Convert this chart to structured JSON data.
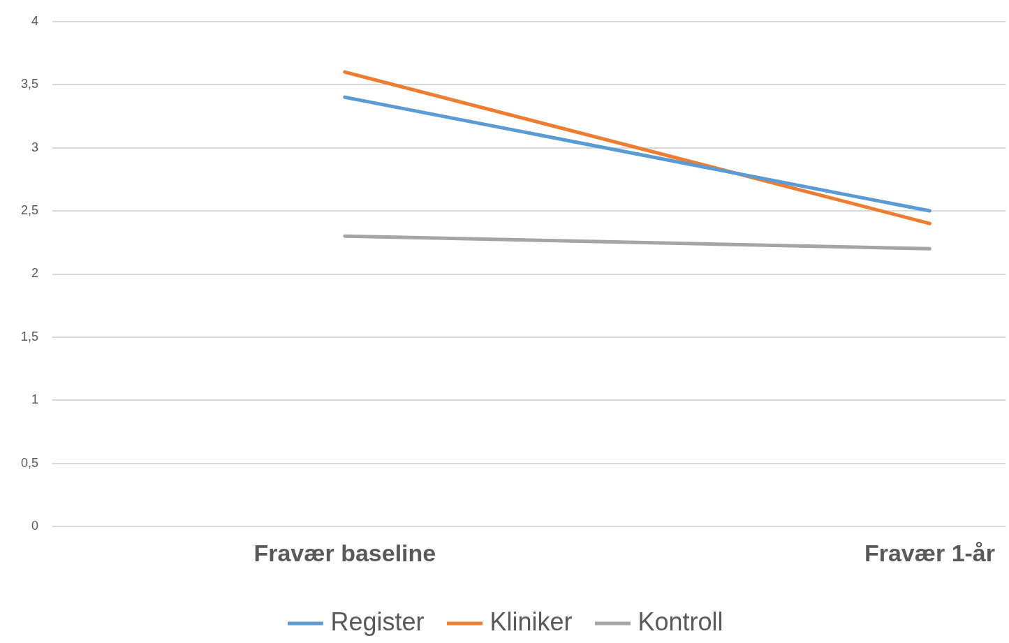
{
  "chart_data": {
    "type": "line",
    "categories": [
      "Fravær baseline",
      "Fravær 1-år"
    ],
    "series": [
      {
        "name": "Register",
        "color": "#5b9bd5",
        "values": [
          3.4,
          2.5
        ]
      },
      {
        "name": "Kliniker",
        "color": "#ed7d31",
        "values": [
          3.6,
          2.4
        ]
      },
      {
        "name": "Kontroll",
        "color": "#a5a5a5",
        "values": [
          2.3,
          2.2
        ]
      }
    ],
    "ylim": [
      0,
      4
    ],
    "yticks": [
      0,
      {
        "value": 0.5,
        "label": "0,5"
      },
      1,
      {
        "value": 1.5,
        "label": "1,5"
      },
      2,
      {
        "value": 2.5,
        "label": "2,5"
      },
      3,
      {
        "value": 3.5,
        "label": "3,5"
      },
      4
    ],
    "grid": "y",
    "legend": "bottom",
    "marker": "none",
    "line_style": "solid"
  }
}
